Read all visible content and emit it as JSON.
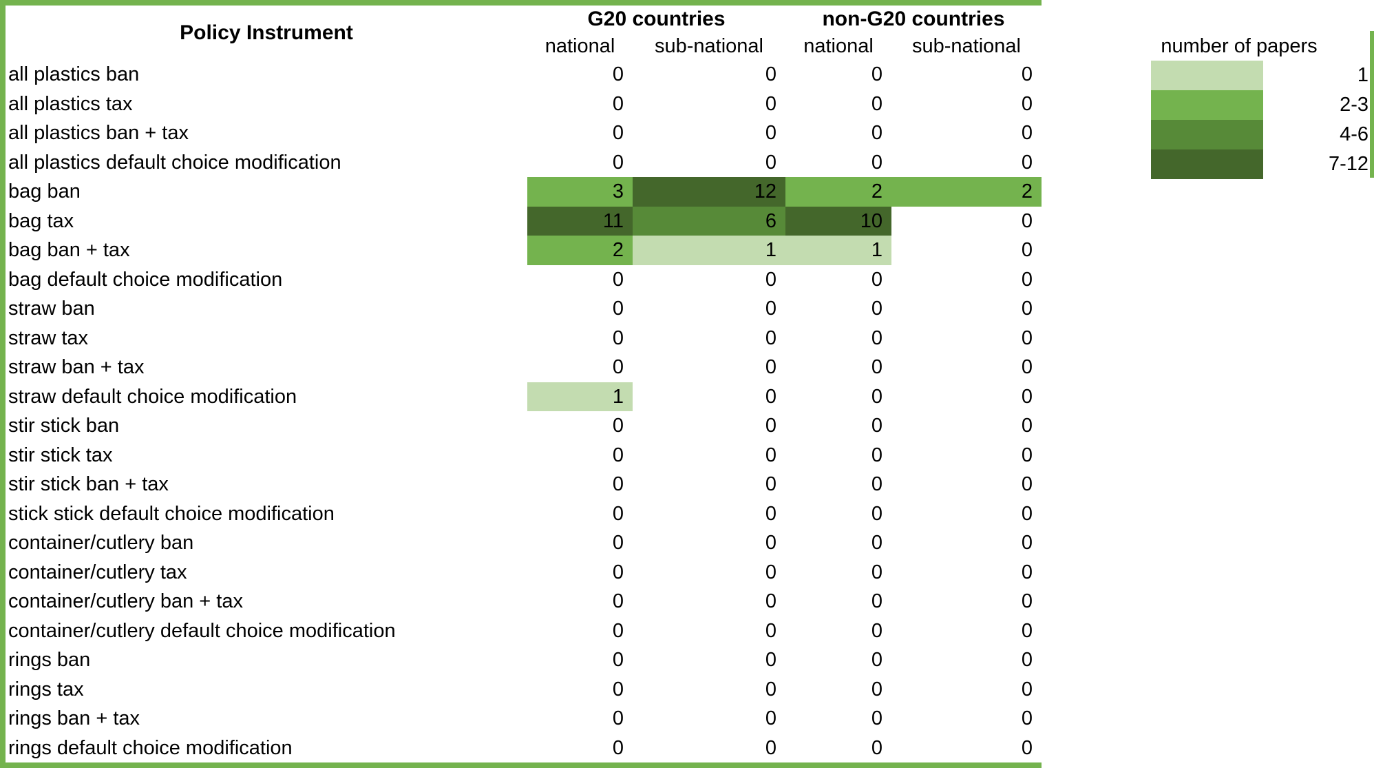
{
  "colors": {
    "border_green": "#74b34e",
    "bin1": "#c3dcb0",
    "bin2": "#74b34e",
    "bin3": "#578a38",
    "bin4": "#44672b",
    "text": "#000000",
    "background": "#ffffff"
  },
  "header": {
    "row_label_title": "Policy Instrument",
    "groups": [
      {
        "label": "G20 countries",
        "subcolumns": [
          "national",
          "sub-national"
        ]
      },
      {
        "label": "non-G20 countries",
        "subcolumns": [
          "national",
          "sub-national"
        ]
      }
    ]
  },
  "legend": {
    "title": "number of papers",
    "bins": [
      {
        "label": "1",
        "color_key": "bin1"
      },
      {
        "label": "2-3",
        "color_key": "bin2"
      },
      {
        "label": "4-6",
        "color_key": "bin3"
      },
      {
        "label": "7-12",
        "color_key": "bin4"
      }
    ]
  },
  "chart_data": {
    "type": "heatmap",
    "title": "",
    "xlabel": "",
    "ylabel": "Policy Instrument",
    "legend_title": "number of papers",
    "legend_position": "top-right",
    "column_groups": [
      "G20 countries",
      "non-G20 countries"
    ],
    "columns": [
      "G20 national",
      "G20 sub-national",
      "non-G20 national",
      "non-G20 sub-national"
    ],
    "value_bins": [
      {
        "label": "1",
        "min": 1,
        "max": 1,
        "color_key": "bin1"
      },
      {
        "label": "2-3",
        "min": 2,
        "max": 3,
        "color_key": "bin2"
      },
      {
        "label": "4-6",
        "min": 4,
        "max": 6,
        "color_key": "bin3"
      },
      {
        "label": "7-12",
        "min": 7,
        "max": 12,
        "color_key": "bin4"
      }
    ],
    "rows": [
      {
        "label": "all plastics ban",
        "values": [
          0,
          0,
          0,
          0
        ]
      },
      {
        "label": "all plastics tax",
        "values": [
          0,
          0,
          0,
          0
        ]
      },
      {
        "label": "all plastics ban + tax",
        "values": [
          0,
          0,
          0,
          0
        ]
      },
      {
        "label": "all plastics default choice modification",
        "values": [
          0,
          0,
          0,
          0
        ]
      },
      {
        "label": "bag ban",
        "values": [
          3,
          12,
          2,
          2
        ]
      },
      {
        "label": "bag tax",
        "values": [
          11,
          6,
          10,
          0
        ]
      },
      {
        "label": "bag ban + tax",
        "values": [
          2,
          1,
          1,
          0
        ]
      },
      {
        "label": "bag default choice modification",
        "values": [
          0,
          0,
          0,
          0
        ]
      },
      {
        "label": "straw ban",
        "values": [
          0,
          0,
          0,
          0
        ]
      },
      {
        "label": "straw tax",
        "values": [
          0,
          0,
          0,
          0
        ]
      },
      {
        "label": "straw ban + tax",
        "values": [
          0,
          0,
          0,
          0
        ]
      },
      {
        "label": "straw default choice modification",
        "values": [
          1,
          0,
          0,
          0
        ]
      },
      {
        "label": "stir stick ban",
        "values": [
          0,
          0,
          0,
          0
        ]
      },
      {
        "label": "stir stick tax",
        "values": [
          0,
          0,
          0,
          0
        ]
      },
      {
        "label": "stir stick ban + tax",
        "values": [
          0,
          0,
          0,
          0
        ]
      },
      {
        "label": "stick stick default choice modification",
        "values": [
          0,
          0,
          0,
          0
        ]
      },
      {
        "label": "container/cutlery ban",
        "values": [
          0,
          0,
          0,
          0
        ]
      },
      {
        "label": "container/cutlery tax",
        "values": [
          0,
          0,
          0,
          0
        ]
      },
      {
        "label": "container/cutlery ban + tax",
        "values": [
          0,
          0,
          0,
          0
        ]
      },
      {
        "label": "container/cutlery default choice modification",
        "values": [
          0,
          0,
          0,
          0
        ]
      },
      {
        "label": "rings ban",
        "values": [
          0,
          0,
          0,
          0
        ]
      },
      {
        "label": "rings tax",
        "values": [
          0,
          0,
          0,
          0
        ]
      },
      {
        "label": "rings ban + tax",
        "values": [
          0,
          0,
          0,
          0
        ]
      },
      {
        "label": "rings default choice modification",
        "values": [
          0,
          0,
          0,
          0
        ]
      }
    ]
  }
}
